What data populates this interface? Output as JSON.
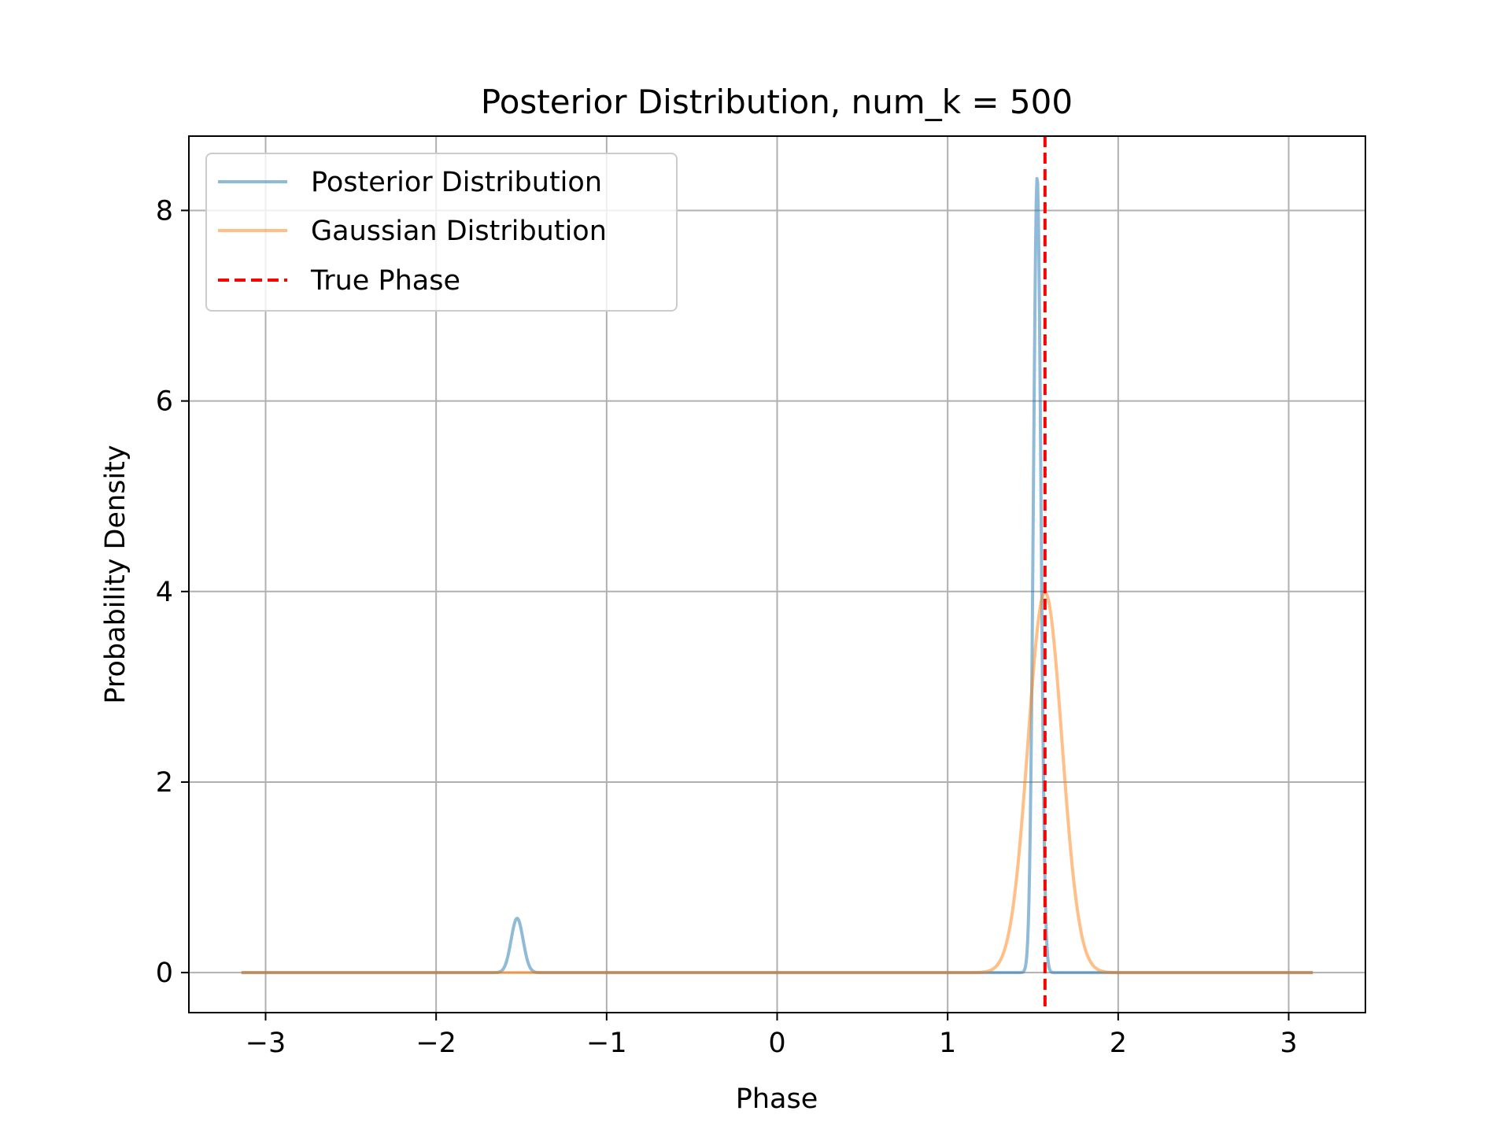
{
  "chart_data": {
    "type": "line",
    "title": "Posterior Distribution, num_k = 500",
    "xlabel": "Phase",
    "ylabel": "Probability Density",
    "xlim": [
      -3.45,
      3.45
    ],
    "ylim": [
      -0.42,
      8.78
    ],
    "xticks": [
      -3,
      -2,
      -1,
      0,
      1,
      2,
      3
    ],
    "xtick_labels": [
      "−3",
      "−2",
      "−1",
      "0",
      "1",
      "2",
      "3"
    ],
    "yticks": [
      0,
      2,
      4,
      6,
      8
    ],
    "ytick_labels": [
      "0",
      "2",
      "4",
      "6",
      "8"
    ],
    "grid": true,
    "legend_position": "upper-left",
    "series": [
      {
        "name": "Posterior Distribution",
        "color": "#1f77b4",
        "alpha": 0.5,
        "style": "solid",
        "x_range": [
          -3.14159,
          3.14159
        ],
        "components": [
          {
            "mu": 1.525,
            "sigma": 0.022,
            "peak": 8.35
          },
          {
            "mu": -1.525,
            "sigma": 0.035,
            "peak": 0.57
          }
        ]
      },
      {
        "name": "Gaussian Distribution",
        "color": "#ff7f0e",
        "alpha": 0.5,
        "style": "solid",
        "x_range": [
          -3.14159,
          3.14159
        ],
        "components": [
          {
            "mu": 1.571,
            "sigma": 0.1,
            "peak": 3.99
          }
        ]
      },
      {
        "name": "True Phase",
        "color": "#ff0000",
        "style": "dashed",
        "type": "vline",
        "x": 1.5708
      }
    ]
  }
}
